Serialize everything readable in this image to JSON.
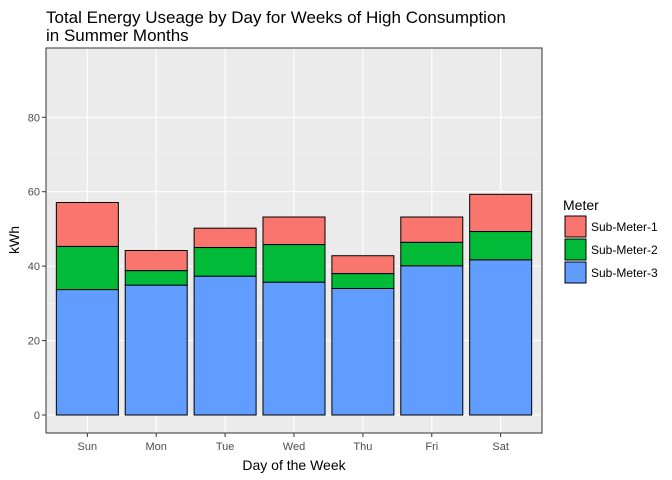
{
  "chart_data": {
    "type": "bar",
    "stacked": true,
    "title_lines": [
      "Total Energy Useage by Day for Weeks of High Consumption",
      "in Summer Months"
    ],
    "xlabel": "Day of the Week",
    "ylabel": "kWh",
    "ylim": [
      0,
      88
    ],
    "yticks": [
      0,
      20,
      40,
      60,
      80
    ],
    "grid": true,
    "legend_position": "right",
    "legend_title": "Meter",
    "categories": [
      "Sun",
      "Mon",
      "Tue",
      "Wed",
      "Thu",
      "Fri",
      "Sat"
    ],
    "series": [
      {
        "name": "Sub-Meter-3",
        "color": "#619CFF",
        "values": [
          33.7,
          34.9,
          37.3,
          35.7,
          34.0,
          40.1,
          41.7
        ]
      },
      {
        "name": "Sub-Meter-2",
        "color": "#00BA38",
        "values": [
          11.6,
          3.9,
          7.7,
          10.1,
          4.0,
          6.3,
          7.6
        ]
      },
      {
        "name": "Sub-Meter-1",
        "color": "#F8766D",
        "values": [
          11.8,
          5.4,
          5.2,
          7.4,
          4.8,
          6.8,
          10.0
        ]
      }
    ],
    "legend_order": [
      "Sub-Meter-1",
      "Sub-Meter-2",
      "Sub-Meter-3"
    ]
  }
}
